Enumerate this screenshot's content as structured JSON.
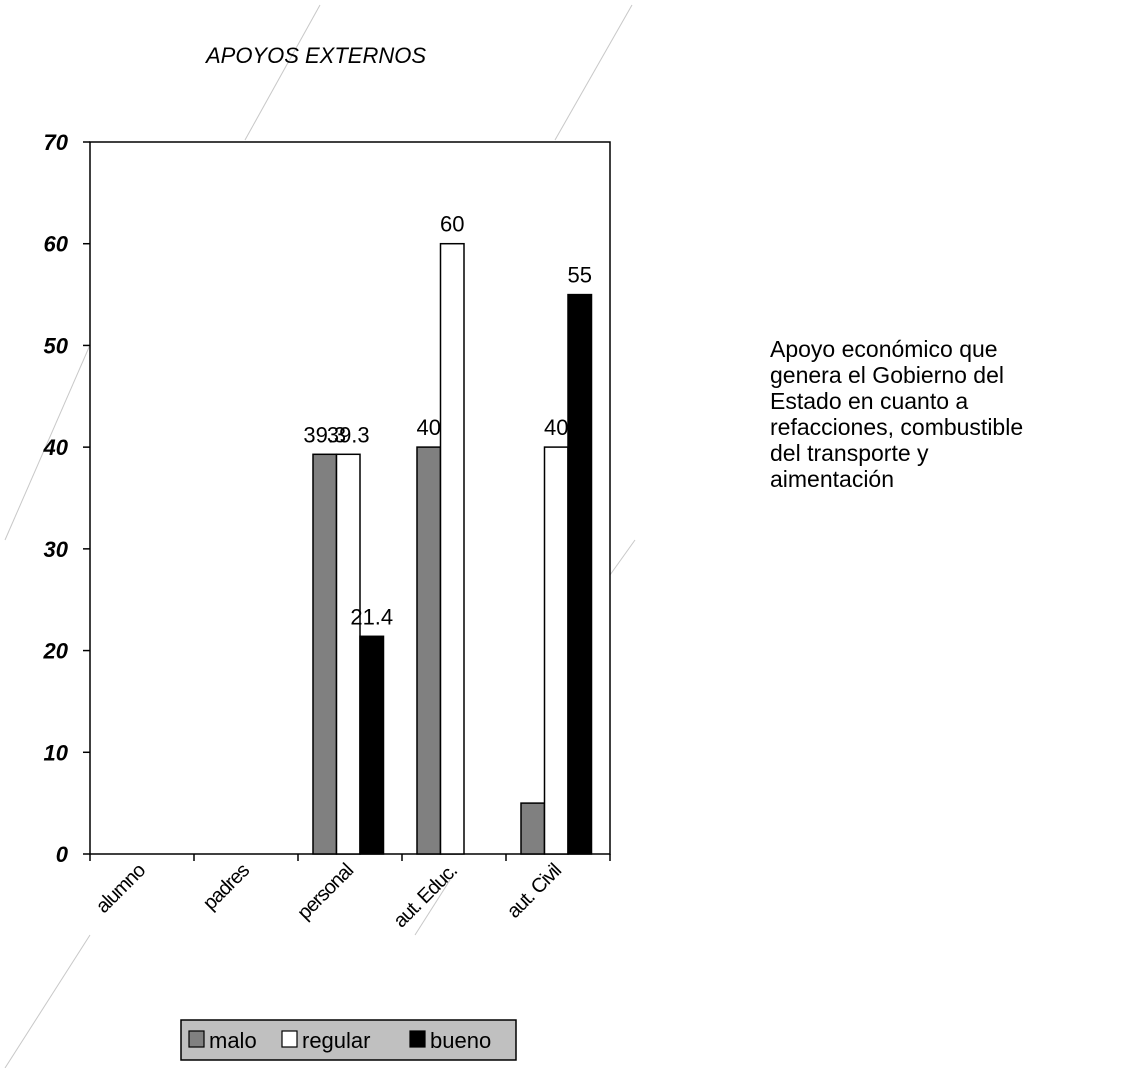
{
  "chart_data": {
    "type": "bar",
    "title": "APOYOS EXTERNOS",
    "categories": [
      "alumno",
      "padres",
      "personal",
      "aut. Educ.",
      "aut. Civil"
    ],
    "series": [
      {
        "name": "malo",
        "color": "#808080",
        "values": [
          0,
          0,
          39.3,
          40,
          5
        ]
      },
      {
        "name": "regular",
        "color": "#ffffff",
        "values": [
          0,
          0,
          39.3,
          60,
          40
        ]
      },
      {
        "name": "bueno",
        "color": "#000000",
        "values": [
          0,
          0,
          21.4,
          0,
          55
        ]
      }
    ],
    "data_labels": [
      {
        "series": 0,
        "category": 2,
        "text": "39.3"
      },
      {
        "series": 1,
        "category": 2,
        "text": "39.3"
      },
      {
        "series": 2,
        "category": 2,
        "text": "21.4"
      },
      {
        "series": 0,
        "category": 3,
        "text": "40"
      },
      {
        "series": 1,
        "category": 3,
        "text": "60"
      },
      {
        "series": 1,
        "category": 4,
        "text": "40"
      },
      {
        "series": 2,
        "category": 4,
        "text": "55"
      }
    ],
    "yticks": [
      0,
      10,
      20,
      30,
      40,
      50,
      60,
      70
    ],
    "ylim": [
      0,
      70
    ],
    "xlabel": "",
    "ylabel": "",
    "grid": false,
    "legend_position": "bottom"
  },
  "side_note": {
    "lines": [
      "Apoyo económico que",
      "genera el  Gobierno del",
      "Estado en cuanto a",
      "refacciones, combustible",
      "del transporte y",
      "aimentación"
    ]
  }
}
